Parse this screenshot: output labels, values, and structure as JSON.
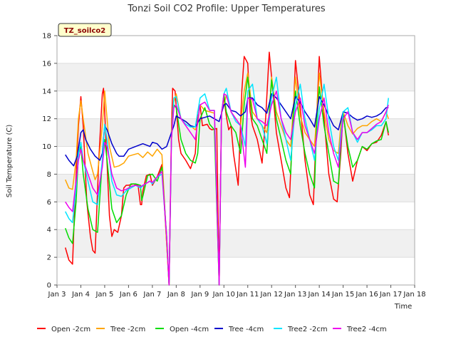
{
  "chart_data": {
    "type": "line",
    "title": "Tonzi Soil CO2 Profile: Upper Temperatures",
    "xlabel": "Time",
    "ylabel": "Soil Temperature (C)",
    "site_label": "TZ_soilco2",
    "xlim": [
      3,
      18
    ],
    "ylim": [
      0,
      18
    ],
    "xticks": [
      "Jan 3",
      "Jan 4",
      "Jan 5",
      "Jan 6",
      "Jan 7",
      "Jan 8",
      "Jan 9",
      "Jan 10",
      "Jan 11",
      "Jan 12",
      "Jan 13",
      "Jan 14",
      "Jan 15",
      "Jan 16",
      "Jan 17",
      "Jan 18"
    ],
    "yticks": [
      "0",
      "2",
      "4",
      "6",
      "8",
      "10",
      "12",
      "14",
      "16",
      "18"
    ],
    "grid": "horizontal bands",
    "legend_position": "bottom",
    "series": [
      {
        "name": "Open -2cm",
        "color": "#ff0000",
        "x": [
          3.35,
          3.5,
          3.65,
          3.75,
          3.9,
          4.0,
          4.1,
          4.25,
          4.4,
          4.5,
          4.6,
          4.75,
          4.9,
          4.95,
          5.0,
          5.2,
          5.3,
          5.4,
          5.55,
          5.6,
          5.7,
          5.8,
          5.9,
          6.0,
          6.2,
          6.4,
          6.5,
          6.55,
          6.6,
          6.75,
          6.9,
          7.0,
          7.2,
          7.4,
          7.6,
          7.7,
          7.8,
          7.85,
          7.95,
          8.1,
          8.2,
          8.4,
          8.6,
          8.8,
          8.9,
          9.0,
          9.1,
          9.3,
          9.4,
          9.5,
          9.7,
          9.8,
          9.9,
          10.0,
          10.1,
          10.2,
          10.3,
          10.4,
          10.6,
          10.75,
          10.85,
          11.0,
          11.1,
          11.2,
          11.4,
          11.6,
          11.75,
          11.9,
          12.0,
          12.2,
          12.4,
          12.6,
          12.75,
          12.9,
          13.0,
          13.2,
          13.4,
          13.6,
          13.75,
          13.9,
          14.0,
          14.2,
          14.4,
          14.6,
          14.75,
          14.9,
          15.0,
          15.2,
          15.4,
          15.6,
          15.8,
          16.0,
          16.2,
          16.4,
          16.6,
          16.8,
          16.9
        ],
        "y": [
          2.7,
          1.8,
          1.5,
          6.0,
          11.5,
          13.6,
          11.5,
          6.0,
          3.5,
          2.5,
          2.3,
          9.0,
          13.8,
          14.2,
          12.5,
          5.0,
          3.5,
          4.0,
          3.8,
          4.2,
          5.0,
          7.0,
          7.2,
          7.2,
          7.3,
          7.2,
          5.8,
          5.8,
          6.8,
          7.9,
          8.0,
          7.2,
          7.8,
          8.7,
          3.0,
          0.0,
          11.0,
          14.2,
          14.0,
          10.5,
          9.5,
          9.0,
          8.4,
          9.5,
          12.5,
          13.0,
          11.5,
          11.6,
          11.3,
          11.2,
          11.3,
          0.0,
          12.5,
          13.5,
          12.2,
          11.2,
          11.5,
          9.5,
          7.2,
          14.0,
          16.5,
          16.0,
          12.5,
          11.5,
          10.5,
          8.8,
          12.0,
          16.8,
          15.0,
          11.0,
          9.0,
          7.0,
          6.3,
          12.0,
          16.2,
          12.8,
          9.0,
          6.5,
          5.8,
          12.5,
          16.5,
          12.0,
          8.0,
          6.2,
          6.0,
          9.5,
          12.5,
          9.5,
          7.5,
          9.0,
          10.0,
          9.7,
          10.2,
          10.3,
          10.8,
          11.8,
          10.8
        ]
      },
      {
        "name": "Tree -2cm",
        "color": "#ffa500",
        "x": [
          3.35,
          3.5,
          3.65,
          3.8,
          3.9,
          4.0,
          4.1,
          4.3,
          4.5,
          4.6,
          4.7,
          4.9,
          5.0,
          5.2,
          5.4,
          5.6,
          5.8,
          6.0,
          6.2,
          6.4,
          6.6,
          6.8,
          7.0,
          7.2,
          7.4,
          7.6,
          7.7,
          7.8,
          7.9,
          8.0,
          8.2,
          8.4,
          8.6,
          8.8,
          8.9,
          9.0,
          9.2,
          9.4,
          9.6,
          9.8,
          9.9,
          10.0,
          10.1,
          10.3,
          10.5,
          10.7,
          10.85,
          11.0,
          11.2,
          11.4,
          11.6,
          11.8,
          11.9,
          12.0,
          12.2,
          12.4,
          12.6,
          12.8,
          12.9,
          13.0,
          13.2,
          13.4,
          13.6,
          13.8,
          13.9,
          14.0,
          14.2,
          14.4,
          14.6,
          14.8,
          14.9,
          15.0,
          15.2,
          15.4,
          15.6,
          15.8,
          16.0,
          16.2,
          16.4,
          16.6,
          16.8,
          16.9
        ],
        "y": [
          7.6,
          7.0,
          6.9,
          9.0,
          12.0,
          13.3,
          12.0,
          9.5,
          8.2,
          7.6,
          8.0,
          11.5,
          14.0,
          10.0,
          8.5,
          8.6,
          8.8,
          9.3,
          9.4,
          9.5,
          9.2,
          9.6,
          9.3,
          9.8,
          9.4,
          3.0,
          0.0,
          11.0,
          13.2,
          13.8,
          12.0,
          11.8,
          11.5,
          11.2,
          11.6,
          13.0,
          12.6,
          12.5,
          12.4,
          0.0,
          12.5,
          13.0,
          13.7,
          12.5,
          12.0,
          11.5,
          14.0,
          15.3,
          12.5,
          12.0,
          11.5,
          11.0,
          12.5,
          15.0,
          12.5,
          11.5,
          10.5,
          10.0,
          12.5,
          15.0,
          12.2,
          11.0,
          10.5,
          10.0,
          12.5,
          15.3,
          12.5,
          10.5,
          9.7,
          9.5,
          11.5,
          12.5,
          11.5,
          10.9,
          11.3,
          11.5,
          11.5,
          11.8,
          12.0,
          11.8,
          12.5,
          12.0
        ]
      },
      {
        "name": "Open -4cm",
        "color": "#00dd00",
        "x": [
          3.35,
          3.5,
          3.65,
          3.8,
          3.9,
          4.0,
          4.1,
          4.3,
          4.5,
          4.7,
          4.9,
          5.0,
          5.1,
          5.3,
          5.5,
          5.7,
          5.9,
          6.1,
          6.3,
          6.5,
          6.55,
          6.6,
          6.8,
          7.0,
          7.2,
          7.4,
          7.6,
          7.7,
          7.8,
          7.9,
          8.0,
          8.2,
          8.4,
          8.6,
          8.8,
          8.9,
          9.0,
          9.2,
          9.4,
          9.6,
          9.8,
          9.9,
          10.0,
          10.1,
          10.3,
          10.5,
          10.7,
          10.85,
          11.0,
          11.2,
          11.4,
          11.6,
          11.8,
          11.9,
          12.0,
          12.2,
          12.4,
          12.6,
          12.8,
          12.9,
          13.0,
          13.2,
          13.4,
          13.6,
          13.8,
          13.9,
          14.0,
          14.2,
          14.4,
          14.6,
          14.8,
          14.9,
          15.0,
          15.2,
          15.4,
          15.6,
          15.8,
          16.0,
          16.2,
          16.4,
          16.6,
          16.8,
          16.9
        ],
        "y": [
          4.1,
          3.4,
          3.0,
          6.0,
          9.5,
          10.0,
          8.0,
          5.5,
          4.0,
          3.8,
          9.0,
          10.5,
          9.0,
          5.5,
          4.5,
          5.0,
          6.5,
          7.3,
          7.3,
          7.2,
          6.1,
          6.4,
          7.9,
          8.0,
          7.5,
          8.5,
          3.5,
          0.0,
          10.5,
          13.0,
          12.8,
          10.5,
          9.5,
          9.0,
          8.8,
          9.5,
          12.0,
          12.8,
          11.6,
          11.2,
          0.0,
          12.3,
          13.8,
          12.5,
          11.5,
          11.0,
          9.5,
          13.0,
          15.0,
          12.0,
          11.5,
          10.5,
          9.5,
          12.5,
          14.8,
          12.0,
          10.5,
          9.0,
          8.0,
          12.0,
          14.0,
          11.5,
          9.5,
          8.0,
          7.0,
          12.0,
          14.3,
          11.5,
          9.5,
          7.5,
          7.3,
          10.0,
          12.3,
          10.0,
          8.5,
          9.0,
          10.0,
          9.8,
          10.2,
          10.4,
          10.5,
          11.8,
          11.0
        ]
      },
      {
        "name": "Tree -4cm",
        "color": "#0000cc",
        "x": [
          3.35,
          3.5,
          3.7,
          3.85,
          4.0,
          4.1,
          4.2,
          4.4,
          4.6,
          4.8,
          4.9,
          5.0,
          5.1,
          5.3,
          5.5,
          5.6,
          5.8,
          6.0,
          6.3,
          6.6,
          6.9,
          7.0,
          7.2,
          7.4,
          7.6,
          7.8,
          7.9,
          8.0,
          8.2,
          8.4,
          8.6,
          8.8,
          9.0,
          9.2,
          9.4,
          9.6,
          9.8,
          10.0,
          10.1,
          10.3,
          10.5,
          10.7,
          10.9,
          11.0,
          11.2,
          11.4,
          11.6,
          11.8,
          12.0,
          12.2,
          12.4,
          12.6,
          12.8,
          13.0,
          13.2,
          13.4,
          13.6,
          13.8,
          14.0,
          14.2,
          14.4,
          14.6,
          14.8,
          15.0,
          15.2,
          15.4,
          15.6,
          15.8,
          16.0,
          16.2,
          16.4,
          16.6,
          16.8,
          16.9
        ],
        "y": [
          9.4,
          9.0,
          8.6,
          9.3,
          11.0,
          11.2,
          10.5,
          9.8,
          9.3,
          9.0,
          9.5,
          11.5,
          11.2,
          10.2,
          9.5,
          9.3,
          9.3,
          9.8,
          10.0,
          10.2,
          10.0,
          10.3,
          10.2,
          9.8,
          10.0,
          11.0,
          11.5,
          12.2,
          12.0,
          11.8,
          11.5,
          11.4,
          12.0,
          12.1,
          12.2,
          12.0,
          11.8,
          13.0,
          13.1,
          12.6,
          12.5,
          12.2,
          12.5,
          13.5,
          13.5,
          13.0,
          12.8,
          12.4,
          13.8,
          13.5,
          13.0,
          12.5,
          12.0,
          13.6,
          13.2,
          12.5,
          12.0,
          11.4,
          13.6,
          13.0,
          12.2,
          11.5,
          11.2,
          12.5,
          12.4,
          12.1,
          11.9,
          12.0,
          12.2,
          12.1,
          12.2,
          12.4,
          12.8,
          12.8
        ]
      },
      {
        "name": "Tree2 -2cm",
        "color": "#00e5ff",
        "x": [
          3.35,
          3.5,
          3.65,
          3.8,
          3.9,
          4.0,
          4.1,
          4.3,
          4.5,
          4.7,
          4.9,
          5.0,
          5.1,
          5.3,
          5.5,
          5.7,
          5.9,
          6.1,
          6.3,
          6.5,
          6.7,
          6.9,
          7.0,
          7.2,
          7.4,
          7.6,
          7.7,
          7.8,
          7.9,
          8.0,
          8.2,
          8.4,
          8.6,
          8.8,
          9.0,
          9.2,
          9.4,
          9.6,
          9.8,
          9.9,
          10.0,
          10.1,
          10.3,
          10.5,
          10.7,
          10.9,
          11.0,
          11.2,
          11.4,
          11.6,
          11.8,
          12.0,
          12.2,
          12.4,
          12.6,
          12.8,
          13.0,
          13.2,
          13.4,
          13.6,
          13.8,
          14.0,
          14.2,
          14.4,
          14.6,
          14.8,
          15.0,
          15.2,
          15.4,
          15.6,
          15.8,
          16.0,
          16.2,
          16.4,
          16.6,
          16.8,
          16.9
        ],
        "y": [
          5.3,
          4.8,
          4.5,
          7.0,
          9.5,
          10.3,
          9.0,
          7.5,
          6.0,
          5.8,
          9.0,
          11.6,
          10.5,
          7.5,
          6.5,
          6.4,
          6.8,
          7.0,
          7.2,
          7.0,
          7.3,
          7.5,
          7.3,
          7.8,
          8.0,
          3.5,
          0.0,
          10.5,
          13.5,
          13.6,
          12.0,
          11.6,
          11.4,
          11.4,
          13.5,
          13.8,
          12.6,
          12.6,
          0.0,
          12.4,
          13.8,
          14.2,
          12.5,
          11.8,
          11.5,
          10.0,
          14.0,
          14.5,
          12.0,
          11.5,
          10.2,
          13.5,
          15.0,
          12.0,
          10.5,
          9.0,
          13.0,
          14.5,
          12.0,
          10.5,
          9.0,
          12.7,
          14.5,
          12.0,
          10.0,
          9.0,
          12.5,
          12.8,
          11.0,
          10.3,
          11.0,
          11.0,
          11.2,
          11.5,
          11.5,
          12.0,
          13.5
        ]
      },
      {
        "name": "Tree2 -4cm",
        "color": "#ee00ee",
        "x": [
          3.35,
          3.5,
          3.65,
          3.8,
          3.9,
          4.0,
          4.1,
          4.3,
          4.5,
          4.7,
          4.9,
          5.0,
          5.1,
          5.3,
          5.5,
          5.7,
          5.9,
          6.1,
          6.3,
          6.5,
          6.7,
          6.9,
          7.0,
          7.2,
          7.4,
          7.6,
          7.7,
          7.8,
          7.9,
          8.0,
          8.2,
          8.4,
          8.6,
          8.8,
          9.0,
          9.2,
          9.4,
          9.6,
          9.8,
          9.9,
          10.0,
          10.1,
          10.3,
          10.5,
          10.7,
          10.9,
          11.0,
          11.2,
          11.4,
          11.6,
          11.8,
          12.0,
          12.2,
          12.4,
          12.6,
          12.8,
          13.0,
          13.2,
          13.4,
          13.6,
          13.8,
          14.0,
          14.2,
          14.4,
          14.6,
          14.8,
          15.0,
          15.2,
          15.4,
          15.6,
          15.8,
          16.0,
          16.2,
          16.4,
          16.6,
          16.8,
          16.9
        ],
        "y": [
          6.0,
          5.6,
          5.3,
          7.5,
          9.0,
          9.8,
          9.0,
          8.0,
          7.0,
          6.5,
          8.5,
          10.3,
          10.0,
          8.0,
          7.0,
          6.8,
          6.9,
          7.1,
          7.2,
          7.1,
          7.3,
          7.5,
          7.4,
          7.8,
          8.2,
          3.5,
          0.0,
          10.5,
          12.8,
          13.0,
          12.0,
          11.5,
          11.0,
          10.5,
          13.0,
          13.2,
          12.6,
          12.6,
          0.0,
          12.3,
          13.8,
          13.7,
          12.5,
          12.0,
          11.5,
          8.5,
          13.5,
          13.4,
          12.0,
          11.8,
          11.5,
          13.0,
          14.0,
          12.0,
          11.0,
          10.5,
          12.5,
          13.5,
          11.5,
          10.5,
          9.5,
          12.0,
          13.5,
          11.0,
          9.5,
          8.5,
          12.0,
          12.5,
          11.0,
          10.5,
          11.0,
          11.0,
          11.3,
          11.6,
          11.8,
          12.5,
          13.0
        ]
      }
    ]
  }
}
